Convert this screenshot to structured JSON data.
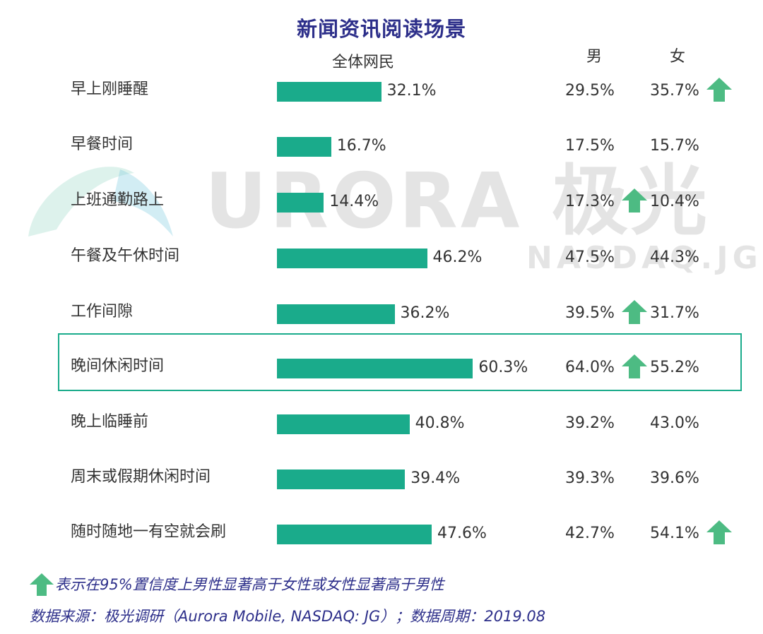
{
  "title": "新闻资讯阅读场景",
  "chart_data": {
    "type": "bar",
    "title": "新闻资讯阅读场景",
    "column_headers": {
      "all": "全体网民",
      "male": "男",
      "female": "女"
    },
    "categories": [
      "早上刚睡醒",
      "早餐时间",
      "上班通勤路上",
      "午餐及午休时间",
      "工作间隙",
      "晚间休闲时间",
      "晚上临睡前",
      "周末或假期休闲时间",
      "随时随地一有空就会刷"
    ],
    "series": [
      {
        "name": "全体网民",
        "values": [
          32.1,
          16.7,
          14.4,
          46.2,
          36.2,
          60.3,
          40.8,
          39.4,
          47.6
        ]
      },
      {
        "name": "男",
        "values": [
          29.5,
          17.5,
          17.3,
          47.5,
          39.5,
          64.0,
          39.2,
          39.3,
          42.7
        ]
      },
      {
        "name": "女",
        "values": [
          35.7,
          15.7,
          10.4,
          44.3,
          31.7,
          55.2,
          43.0,
          39.6,
          54.1
        ]
      }
    ],
    "labels": {
      "all": [
        "32.1%",
        "16.7%",
        "14.4%",
        "46.2%",
        "36.2%",
        "60.3%",
        "40.8%",
        "39.4%",
        "47.6%"
      ],
      "male": [
        "29.5%",
        "17.5%",
        "17.3%",
        "47.5%",
        "39.5%",
        "64.0%",
        "39.2%",
        "39.3%",
        "42.7%"
      ],
      "female": [
        "35.7%",
        "15.7%",
        "10.4%",
        "44.3%",
        "31.7%",
        "55.2%",
        "43.0%",
        "39.6%",
        "54.1%"
      ]
    },
    "significant_higher": [
      "female",
      "none",
      "male",
      "none",
      "male",
      "male",
      "none",
      "none",
      "female"
    ],
    "highlighted_category": "晚间休闲时间",
    "bar_color": "#1aab8b",
    "arrow_color": "#4dbb83"
  },
  "legend_note": "表示在95%置信度上男性显著高于女性或女性显著高于男性",
  "source": "数据来源：极光调研（Aurora Mobile, NASDAQ: JG）；数据周期：2019.08",
  "watermark": {
    "main": "URORA 极光",
    "sub": "NASDAQ.JG"
  },
  "colors": {
    "title": "#2d2f8a",
    "accent": "#1aab8b",
    "text": "#333333"
  }
}
